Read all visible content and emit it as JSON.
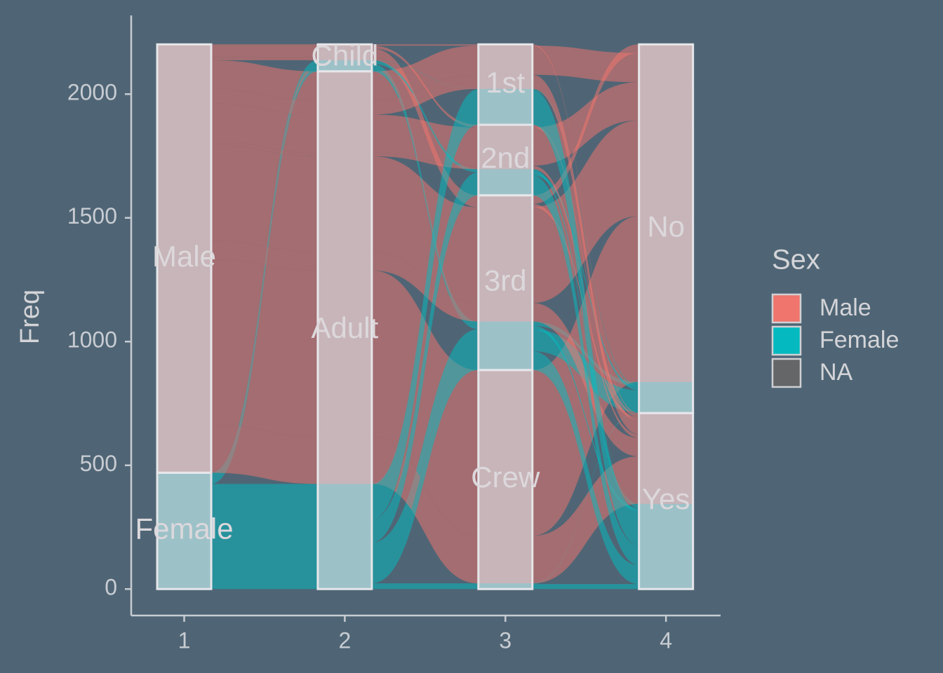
{
  "chart_data": {
    "type": "alluvial",
    "y_label": "Freq",
    "xlim": [
      0.67,
      4.34
    ],
    "xticks": [
      1,
      2,
      3,
      4
    ],
    "ylim": [
      -107,
      2318
    ],
    "yticks": [
      0,
      500,
      1000,
      1500,
      2000
    ],
    "axes": [
      [
        "Female",
        "Male"
      ],
      [
        "Adult",
        "Child"
      ],
      [
        "Crew",
        "3rd",
        "2nd",
        "1st"
      ],
      [
        "Yes",
        "No"
      ]
    ],
    "flows": [
      {
        "path": [
          "Male",
          "Child",
          "3rd",
          "No"
        ],
        "freq": 35
      },
      {
        "path": [
          "Female",
          "Child",
          "3rd",
          "No"
        ],
        "freq": 17
      },
      {
        "path": [
          "Male",
          "Adult",
          "1st",
          "No"
        ],
        "freq": 118
      },
      {
        "path": [
          "Male",
          "Adult",
          "2nd",
          "No"
        ],
        "freq": 154
      },
      {
        "path": [
          "Male",
          "Adult",
          "3rd",
          "No"
        ],
        "freq": 387
      },
      {
        "path": [
          "Male",
          "Adult",
          "Crew",
          "No"
        ],
        "freq": 670
      },
      {
        "path": [
          "Female",
          "Adult",
          "1st",
          "No"
        ],
        "freq": 4
      },
      {
        "path": [
          "Female",
          "Adult",
          "2nd",
          "No"
        ],
        "freq": 13
      },
      {
        "path": [
          "Female",
          "Adult",
          "3rd",
          "No"
        ],
        "freq": 89
      },
      {
        "path": [
          "Female",
          "Adult",
          "Crew",
          "No"
        ],
        "freq": 3
      },
      {
        "path": [
          "Male",
          "Child",
          "1st",
          "Yes"
        ],
        "freq": 5
      },
      {
        "path": [
          "Male",
          "Child",
          "2nd",
          "Yes"
        ],
        "freq": 11
      },
      {
        "path": [
          "Male",
          "Child",
          "3rd",
          "Yes"
        ],
        "freq": 13
      },
      {
        "path": [
          "Female",
          "Child",
          "1st",
          "Yes"
        ],
        "freq": 1
      },
      {
        "path": [
          "Female",
          "Child",
          "2nd",
          "Yes"
        ],
        "freq": 13
      },
      {
        "path": [
          "Female",
          "Child",
          "3rd",
          "Yes"
        ],
        "freq": 14
      },
      {
        "path": [
          "Male",
          "Adult",
          "1st",
          "Yes"
        ],
        "freq": 57
      },
      {
        "path": [
          "Male",
          "Adult",
          "2nd",
          "Yes"
        ],
        "freq": 14
      },
      {
        "path": [
          "Male",
          "Adult",
          "3rd",
          "Yes"
        ],
        "freq": 75
      },
      {
        "path": [
          "Male",
          "Adult",
          "Crew",
          "Yes"
        ],
        "freq": 192
      },
      {
        "path": [
          "Female",
          "Adult",
          "1st",
          "Yes"
        ],
        "freq": 140
      },
      {
        "path": [
          "Female",
          "Adult",
          "2nd",
          "Yes"
        ],
        "freq": 80
      },
      {
        "path": [
          "Female",
          "Adult",
          "3rd",
          "Yes"
        ],
        "freq": 76
      },
      {
        "path": [
          "Female",
          "Adult",
          "Crew",
          "Yes"
        ],
        "freq": 20
      }
    ],
    "legend": {
      "title": "Sex",
      "items": [
        {
          "name": "Male",
          "color": "#F8766D"
        },
        {
          "name": "Female",
          "color": "#00BFC4"
        },
        {
          "name": "NA",
          "color": "#666666"
        }
      ]
    }
  }
}
